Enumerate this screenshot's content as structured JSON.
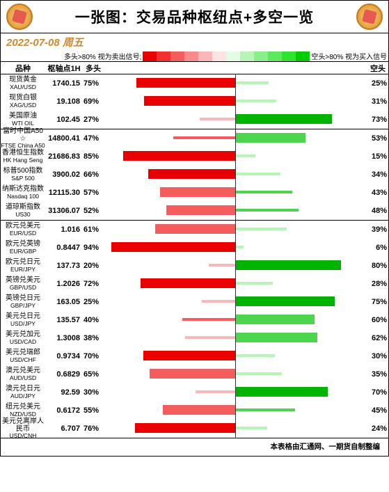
{
  "title": "一张图：交易品种枢纽点+多空一览",
  "date": "2022-07-08 周五",
  "legend": {
    "long_text": "多头>80% 视为卖出信号;",
    "short_text": "空头>80% 视为买入信号"
  },
  "columns": {
    "name": "品种",
    "pivot": "枢轴点1H",
    "long": "多头",
    "short": "空头"
  },
  "red_gradient": [
    "#e60000",
    "#f23030",
    "#f55d5d",
    "#f88a8a",
    "#fbb7b7",
    "#fde4e4"
  ],
  "green_gradient": [
    "#e4fbe4",
    "#b7f5b7",
    "#8aef8a",
    "#5de95d",
    "#30e330",
    "#00cc00"
  ],
  "red_bar_colors": {
    "dark": "#e60000",
    "mid": "#f55d5d",
    "light": "#fbb7b7"
  },
  "green_bar_colors": {
    "dark": "#00b300",
    "mid": "#4dd64d",
    "light": "#b7f5b7"
  },
  "groups": [
    {
      "rows": [
        {
          "cn": "现货黄金",
          "en": "XAU/USD",
          "pivot": "1740.15",
          "long": 75,
          "short": 25
        },
        {
          "cn": "现货白银",
          "en": "XAG/USD",
          "pivot": "19.108",
          "long": 69,
          "short": 31
        },
        {
          "cn": "美国原油",
          "en": "WTI OIL",
          "pivot": "102.45",
          "long": 27,
          "short": 73
        }
      ]
    },
    {
      "rows": [
        {
          "cn": "富时中国A50 ☆",
          "en": "FTSE China A50",
          "pivot": "14800.41",
          "long": 47,
          "short": 53
        },
        {
          "cn": "香港恒生指数",
          "en": "HK Hang Seng",
          "pivot": "21686.83",
          "long": 85,
          "short": 15
        },
        {
          "cn": "标普500指数",
          "en": "S&P 500",
          "pivot": "3900.02",
          "long": 66,
          "short": 34
        },
        {
          "cn": "纳斯达克指数",
          "en": "Nasdaq 100",
          "pivot": "12115.30",
          "long": 57,
          "short": 43
        },
        {
          "cn": "道琼斯指数",
          "en": "US30",
          "pivot": "31306.07",
          "long": 52,
          "short": 48
        }
      ]
    },
    {
      "rows": [
        {
          "cn": "欧元兑美元",
          "en": "EUR/USD",
          "pivot": "1.016",
          "long": 61,
          "short": 39
        },
        {
          "cn": "欧元兑英镑",
          "en": "EUR/GBP",
          "pivot": "0.8447",
          "long": 94,
          "short": 6
        },
        {
          "cn": "欧元兑日元",
          "en": "EUR/JPY",
          "pivot": "137.73",
          "long": 20,
          "short": 80
        },
        {
          "cn": "英镑兑美元",
          "en": "GBP/USD",
          "pivot": "1.2026",
          "long": 72,
          "short": 28
        },
        {
          "cn": "英镑兑日元",
          "en": "GBP/JPY",
          "pivot": "163.05",
          "long": 25,
          "short": 75
        },
        {
          "cn": "美元兑日元",
          "en": "USD/JPY",
          "pivot": "135.57",
          "long": 40,
          "short": 60
        },
        {
          "cn": "美元兑加元",
          "en": "USD/CAD",
          "pivot": "1.3008",
          "long": 38,
          "short": 62
        },
        {
          "cn": "美元兑瑞郎",
          "en": "USD/CHF",
          "pivot": "0.9734",
          "long": 70,
          "short": 30
        },
        {
          "cn": "澳元兑美元",
          "en": "AUD/USD",
          "pivot": "0.6829",
          "long": 65,
          "short": 35
        },
        {
          "cn": "澳元兑日元",
          "en": "AUD/JPY",
          "pivot": "92.59",
          "long": 30,
          "short": 70
        },
        {
          "cn": "纽元兑美元",
          "en": "NZD/USD",
          "pivot": "0.6172",
          "long": 55,
          "short": 45
        },
        {
          "cn": "美元兑离岸人民币",
          "en": "USD/CNH",
          "pivot": "6.707",
          "long": 76,
          "short": 24
        }
      ]
    }
  ],
  "footer": "本表格由汇通网、一期货自制整编"
}
